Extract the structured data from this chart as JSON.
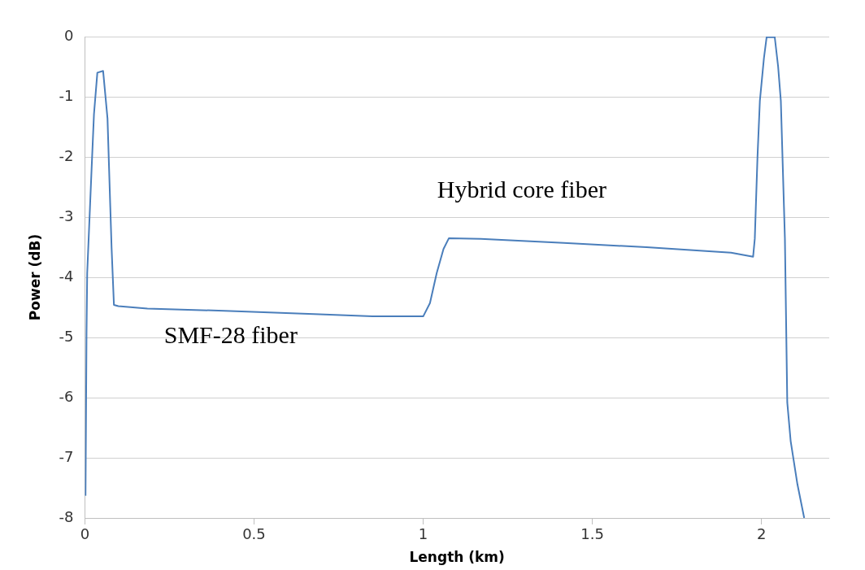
{
  "chart_data": {
    "type": "line",
    "xlabel": "Length (km)",
    "ylabel": "Power (dB)",
    "xlim": [
      0,
      2.2
    ],
    "xticks": [
      0,
      0.5,
      1,
      1.5,
      2
    ],
    "ylim": [
      -8,
      0
    ],
    "yticks": [
      -8,
      -7,
      -6,
      -5,
      -4,
      -3,
      -2,
      -1,
      0
    ],
    "grid": "y",
    "legend": false,
    "marker": "none",
    "line_style": "solid",
    "annotations": [
      "Hybrid core fiber",
      "SMF-28 fiber"
    ],
    "series": [
      {
        "color": "#4a7ebb",
        "x": [
          0.002,
          0.005,
          0.007,
          0.02,
          0.027,
          0.037,
          0.054,
          0.067,
          0.079,
          0.086,
          0.099,
          0.185,
          0.43,
          0.677,
          0.85,
          1.0,
          1.02,
          1.04,
          1.06,
          1.076,
          1.17,
          1.416,
          1.66,
          1.91,
          1.975,
          1.98,
          1.988,
          1.995,
          2.007,
          2.015,
          2.039,
          2.049,
          2.057,
          2.069,
          2.076,
          2.086,
          2.106,
          2.126
        ],
        "values": [
          -7.63,
          -4.94,
          -3.93,
          -2.2,
          -1.29,
          -0.6,
          -0.57,
          -1.36,
          -3.5,
          -4.46,
          -4.48,
          -4.52,
          -4.56,
          -4.61,
          -4.65,
          -4.65,
          -4.43,
          -3.93,
          -3.53,
          -3.35,
          -3.36,
          -3.43,
          -3.5,
          -3.59,
          -3.66,
          -3.36,
          -2.0,
          -1.07,
          -0.36,
          -0.01,
          -0.01,
          -0.5,
          -1.07,
          -3.36,
          -6.08,
          -6.72,
          -7.44,
          -8.0
        ]
      }
    ]
  }
}
